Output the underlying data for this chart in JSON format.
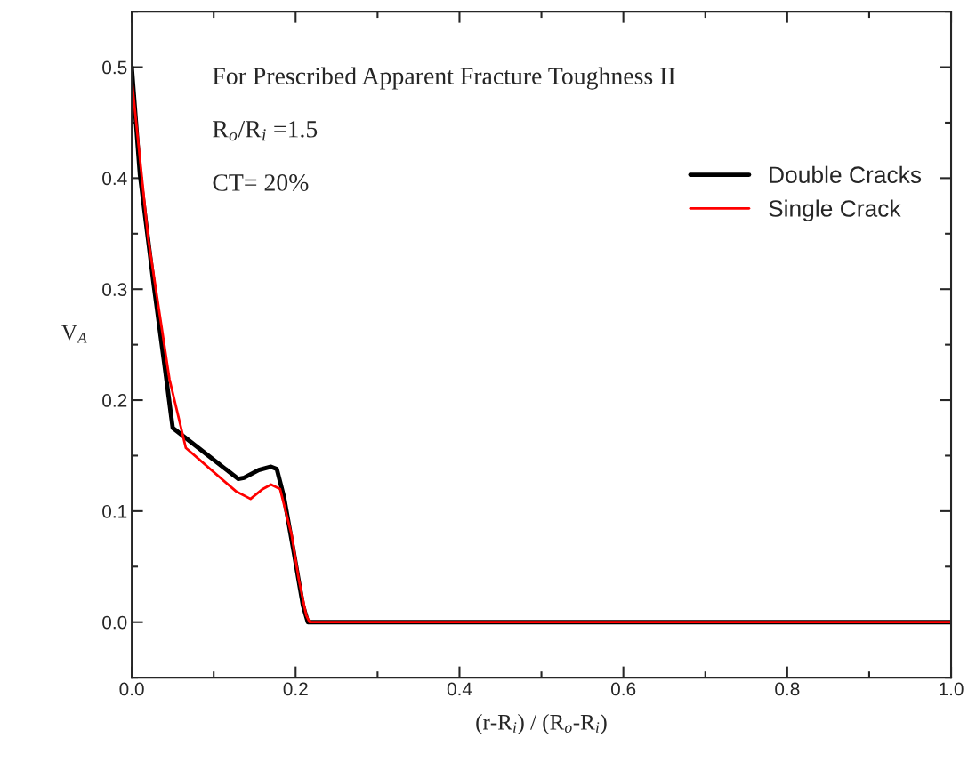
{
  "chart_data": {
    "type": "line",
    "xlabel": "(r-R$_{i}$) / (R$_{o}$-R$_{i}$)",
    "ylabel": "V$_{A}$",
    "annotations": [
      "For Prescribed Apparent Fracture Toughness II",
      "R$_{o}$/R$_{i}$ =1.5",
      "CT= 20%"
    ],
    "xlim": [
      0,
      1.0
    ],
    "xticks": [
      {
        "value": 0,
        "label": "0.0"
      },
      0.2,
      0.4,
      0.6,
      0.8,
      {
        "value": 1.0,
        "label": "1.0"
      }
    ],
    "ylim": [
      -0.05,
      0.55
    ],
    "yticks": [
      {
        "value": 0,
        "label": "0.0"
      },
      0.1,
      0.2,
      0.3,
      0.4,
      0.5
    ],
    "legend": "top right",
    "grid": false,
    "line_style": "solid",
    "marker": "none",
    "series": [
      {
        "name": "Double Cracks",
        "color": "#000000",
        "x": [
          0,
          0.01,
          0.027,
          0.041,
          0.05,
          0.09,
          0.13,
          0.137,
          0.155,
          0.17,
          0.177,
          0.186,
          0.198,
          0.209,
          0.215,
          0.3,
          0.5,
          0.7,
          0.9,
          1.0
        ],
        "values": [
          0.5,
          0.403,
          0.303,
          0.226,
          0.175,
          0.152,
          0.129,
          0.13,
          0.137,
          0.14,
          0.138,
          0.112,
          0.062,
          0.015,
          0,
          0,
          0,
          0,
          0,
          0
        ]
      },
      {
        "name": "Single Crack",
        "color": "#ff0000",
        "x": [
          0,
          0.02,
          0.046,
          0.066,
          0.127,
          0.145,
          0.16,
          0.17,
          0.181,
          0.195,
          0.204,
          0.213,
          0.217,
          0.3,
          0.5,
          0.7,
          0.9,
          1.0
        ],
        "values": [
          0.489,
          0.346,
          0.219,
          0.157,
          0.118,
          0.111,
          0.12,
          0.124,
          0.12,
          0.079,
          0.038,
          0.006,
          0,
          0,
          0,
          0,
          0,
          0
        ]
      }
    ]
  }
}
